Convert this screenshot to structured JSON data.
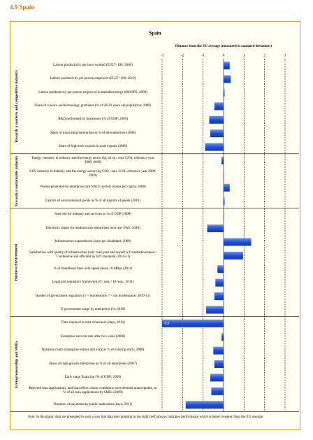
{
  "header": "4.9 Spain",
  "chart_data": {
    "type": "bar",
    "orientation": "horizontal",
    "title": "Spain",
    "xlabel": "Distance from the EU average (measured in standard deviations)",
    "xlim": [
      -3,
      3
    ],
    "xticks": [
      -3,
      -2,
      -1,
      0,
      1,
      2,
      3
    ],
    "grid": true,
    "color": "#2d5fe0",
    "groups": [
      {
        "name": "Towards a modern and competitive industry",
        "categories": [
          "Labour productivity per hour worked (EU27=100; 2009)",
          "Labour productivity per person employed (EU27=100; 2010)",
          "Labour productivity per person employed in manufacturing (1000 PPS; 2009)",
          "Share of science and technology graduates (% of 20-29 years old population; 2009)",
          "R&D performed by businesses (% of GDP; 2009)",
          "Share of innovating enterprises as % of all enterprises (2008)",
          "Share of high-tech exports in total exports (2009)"
        ],
        "values": [
          0.3,
          0.35,
          0.05,
          -0.45,
          -0.7,
          -0.65,
          -0.9
        ]
      },
      {
        "name": "Towards a sustainable industry",
        "categories": [
          "Energy intensity in industry and the energy sector (kg oil eq./ euro GVA; reference year 2000; 2009)",
          "CO2 intensity in industry and the energy sector (kg CO2 / euro GVA; reference year 2000; 2009)",
          "Wastes generated by enterprises (all NACE sectors tonnes per capita; 2008)",
          "Exports of environmental goods as % of all exports of goods (2010)"
        ],
        "values": [
          -0.1,
          0.02,
          0.3,
          0.05
        ]
      },
      {
        "name": "Business Environment",
        "categories": [
          "State aid for industry and services as % of GDP (2009)",
          "Electricity prices for medium size enterprises (euro per kWh; 2010)",
          "Infrastructure expenditures (euro per inhabitant; 2009)",
          "Satisfaction with quality of infrastructure (rail, road, port and airport) (1=underdeveloped / 7=extensive and efficient by int'l standards; 2010-11)",
          "% of broadband lines with speed above 10 MBps (2011)",
          "Legal and regulatory framework (0= neg. / 10=pos.; 2011)",
          "Burden of government regulation (1 = burdensome 7 = not burdensome; 2010-11)",
          "E-government usage by enterprises (%; 2010)"
        ],
        "values": [
          0.02,
          -0.8,
          1.35,
          0.95,
          -0.3,
          -0.4,
          -0.45,
          -0.85
        ]
      },
      {
        "name": "Entrepreneurship and SMEs",
        "categories": [
          "Time required to start a business (days; 2010)",
          "Enterprise survival rate after two years (2008)",
          "Business churn (enterprise entries and exits as % of existing stock; 2008)",
          "Share of high-growth enterprises as % of all enterprises (2007)",
          "Early stage financing (% of GDP; 2009)",
          "Rejected loan applications, and loan offers whose conditions were deemed unacceptable, as % of all loan applications by SMEs (2009)",
          "Duration of payments by public authorities (days; 2011)"
        ],
        "values": [
          -3.3,
          -0.1,
          -0.5,
          -0.45,
          -0.65,
          -0.6,
          -1.85
        ]
      }
    ],
    "note_label": "Note",
    "note": ": In the graph, data are presented in such a way that data bars pointing to the right (left) always indicates performance which is better (weaker) than the EU average."
  }
}
